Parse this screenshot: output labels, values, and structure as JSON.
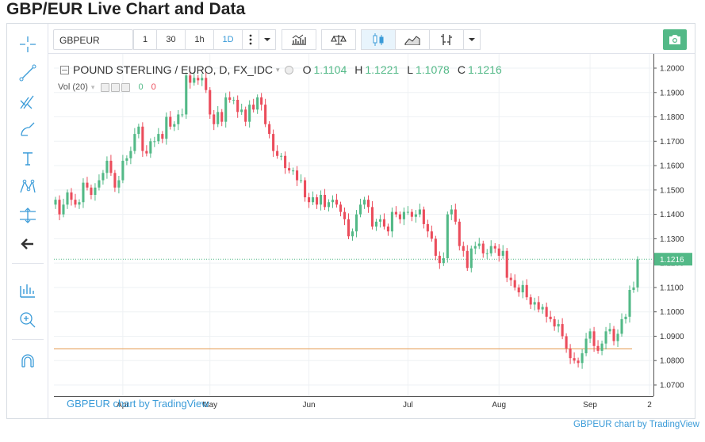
{
  "page": {
    "title": "GBP/EUR Live Chart and Data"
  },
  "toolbar": {
    "symbol": "GBPEUR",
    "timeframes": [
      {
        "label": "1",
        "active": false
      },
      {
        "label": "30",
        "active": false
      },
      {
        "label": "1h",
        "active": false
      },
      {
        "label": "1D",
        "active": true
      }
    ]
  },
  "legend": {
    "title": "POUND STERLING / EURO, D, FX_IDC",
    "o_label": "O",
    "o_value": "1.1104",
    "h_label": "H",
    "h_value": "1.1221",
    "l_label": "L",
    "l_value": "1.1078",
    "c_label": "C",
    "c_value": "1.1216",
    "volume_label": "Vol (20)",
    "volume_value_1": "0",
    "volume_value_2": "0"
  },
  "watermark": "GBPEUR chart by TradingView",
  "footer_link": "GBPEUR chart by TradingView",
  "colors": {
    "up": "#53b987",
    "down": "#eb4d5c",
    "accent": "#3a9bd8",
    "support_line": "#e8a25f"
  },
  "chart_data": {
    "type": "candlestick",
    "title": "POUND STERLING / EURO, D, FX_IDC",
    "price_axis": {
      "min": 1.07,
      "max": 1.2,
      "ticks": [
        "1.2000",
        "1.1900",
        "1.1800",
        "1.1700",
        "1.1600",
        "1.1500",
        "1.1400",
        "1.1300",
        "1.1200",
        "1.1100",
        "1.1000",
        "1.0900",
        "1.0800",
        "1.0700"
      ]
    },
    "time_axis": {
      "labels": [
        "Apr",
        "May",
        "Jun",
        "Jul",
        "Aug",
        "Sep",
        "2"
      ],
      "label_index": [
        17,
        39,
        64,
        89,
        112,
        135,
        150
      ]
    },
    "last_price": "1.1216",
    "last_price_value": 1.1216,
    "support_level": 1.0848,
    "grid": true,
    "close": [
      1.146,
      1.14,
      1.144,
      1.149,
      1.146,
      1.144,
      1.145,
      1.153,
      1.151,
      1.148,
      1.151,
      1.154,
      1.157,
      1.162,
      1.157,
      1.151,
      1.154,
      1.162,
      1.163,
      1.166,
      1.173,
      1.176,
      1.166,
      1.165,
      1.17,
      1.17,
      1.173,
      1.171,
      1.18,
      1.176,
      1.177,
      1.181,
      1.181,
      1.197,
      1.194,
      1.196,
      1.195,
      1.196,
      1.191,
      1.181,
      1.177,
      1.182,
      1.178,
      1.188,
      1.187,
      1.187,
      1.182,
      1.183,
      1.178,
      1.185,
      1.183,
      1.188,
      1.185,
      1.177,
      1.173,
      1.166,
      1.164,
      1.164,
      1.159,
      1.158,
      1.158,
      1.154,
      1.154,
      1.147,
      1.145,
      1.147,
      1.144,
      1.148,
      1.143,
      1.145,
      1.146,
      1.144,
      1.141,
      1.138,
      1.131,
      1.133,
      1.14,
      1.144,
      1.146,
      1.143,
      1.135,
      1.137,
      1.138,
      1.135,
      1.133,
      1.141,
      1.14,
      1.138,
      1.141,
      1.141,
      1.139,
      1.14,
      1.142,
      1.136,
      1.133,
      1.13,
      1.123,
      1.12,
      1.122,
      1.14,
      1.142,
      1.137,
      1.127,
      1.125,
      1.118,
      1.126,
      1.127,
      1.128,
      1.124,
      1.124,
      1.127,
      1.126,
      1.123,
      1.125,
      1.114,
      1.113,
      1.11,
      1.108,
      1.111,
      1.106,
      1.103,
      1.104,
      1.101,
      1.102,
      1.098,
      1.097,
      1.094,
      1.095,
      1.09,
      1.085,
      1.081,
      1.08,
      1.079,
      1.083,
      1.089,
      1.092,
      1.086,
      1.084,
      1.087,
      1.092,
      1.093,
      1.088,
      1.091,
      1.097,
      1.098,
      1.109,
      1.11,
      1.1216
    ]
  }
}
